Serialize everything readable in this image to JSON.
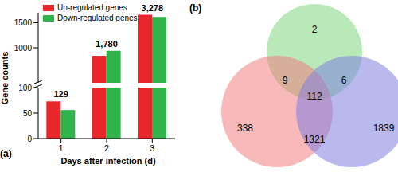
{
  "chart_data": [
    {
      "type": "bar",
      "title": "(a)",
      "x_label": "Days after infection (d)",
      "y_label": "Gene counts",
      "categories": [
        "1",
        "2",
        "3"
      ],
      "series": [
        {
          "name": "Up-regulated genes",
          "color": "#e8262b",
          "values": [
            73,
            840,
            1660
          ]
        },
        {
          "name": "Down-regulated genes",
          "color": "#2fb34a",
          "values": [
            56,
            940,
            1618
          ]
        }
      ],
      "y_segments": [
        {
          "ylim": [
            0,
            100
          ],
          "yticks": [
            0,
            50,
            100
          ]
        },
        {
          "ylim": [
            300,
            1700
          ],
          "yticks": [
            1000,
            1500
          ]
        }
      ],
      "annotations": [
        {
          "x": "1",
          "value": 129,
          "label": "129"
        },
        {
          "x": "2",
          "value": 1780,
          "label": "1,780"
        },
        {
          "x": "3",
          "value": 3278,
          "label": "3,278"
        }
      ],
      "legend": "upper left"
    },
    {
      "type": "venn",
      "title": "(b)",
      "colors": [
        "#7fd67f",
        "#f08080",
        "#8080e0"
      ],
      "regions": [
        {
          "sets": [
            0
          ],
          "value": 2
        },
        {
          "sets": [
            0,
            1
          ],
          "value": 9
        },
        {
          "sets": [
            0,
            2
          ],
          "value": 6
        },
        {
          "sets": [
            0,
            1,
            2
          ],
          "value": 112
        },
        {
          "sets": [
            1
          ],
          "value": 338
        },
        {
          "sets": [
            1,
            2
          ],
          "value": 1321
        },
        {
          "sets": [
            2
          ],
          "value": 1839
        }
      ]
    }
  ]
}
